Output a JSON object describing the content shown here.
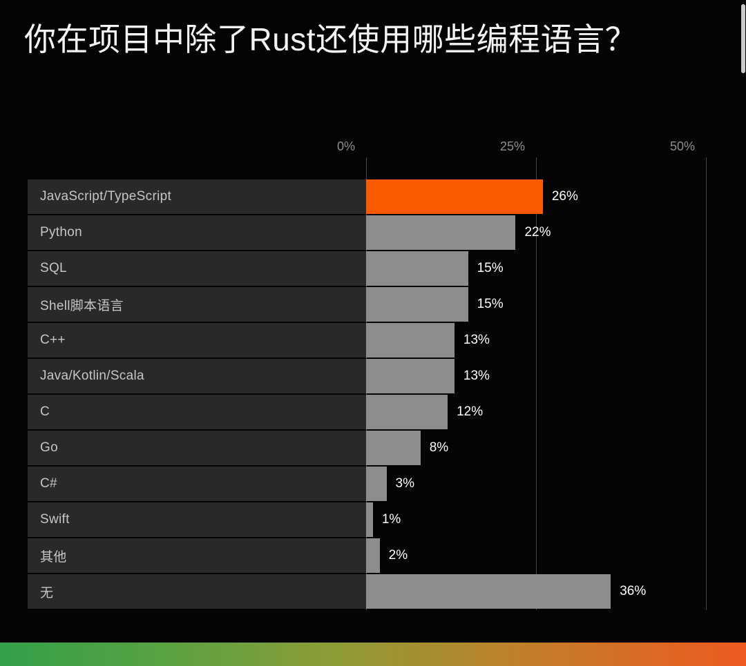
{
  "chart_data": {
    "type": "bar",
    "orientation": "horizontal",
    "title": "你在项目中除了Rust还使用哪些编程语言？",
    "categories": [
      "JavaScript/TypeScript",
      "Python",
      "SQL",
      "Shell脚本语言",
      "C++",
      "Java/Kotlin/Scala",
      "C",
      "Go",
      "C#",
      "Swift",
      "其他",
      "无"
    ],
    "values": [
      26,
      22,
      15,
      15,
      13,
      13,
      12,
      8,
      3,
      1,
      2,
      36
    ],
    "value_labels": [
      "26%",
      "22%",
      "15%",
      "15%",
      "13%",
      "13%",
      "12%",
      "8%",
      "3%",
      "1%",
      "2%",
      "36%"
    ],
    "x_ticks": [
      {
        "label": "0%",
        "value": 0
      },
      {
        "label": "25%",
        "value": 25
      },
      {
        "label": "50%",
        "value": 50
      }
    ],
    "xlim": [
      0,
      50
    ],
    "grid": true,
    "legend": false,
    "highlight_index": 0,
    "highlight_color": "#FB5A00",
    "bar_color": "#8D8D8D"
  },
  "theme": {
    "background": "#040404",
    "row_background": "#292929",
    "gridline_color": "#474747",
    "category_text_color": "#C6C6C6",
    "tick_text_color": "#8F8F8F",
    "value_text_color": "#FFFFFF",
    "footer_gradient": [
      "#33A04A",
      "#8D9C37",
      "#EE5A1F"
    ]
  }
}
